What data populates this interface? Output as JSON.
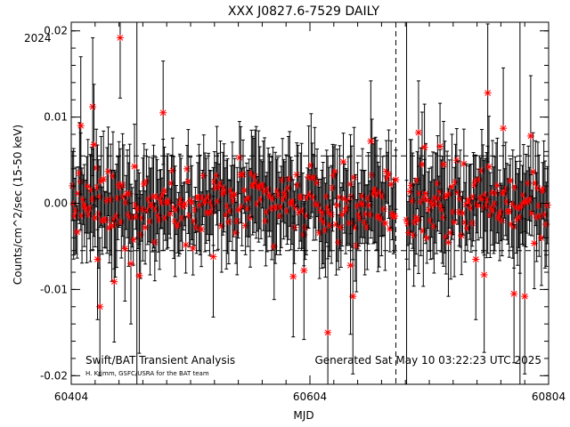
{
  "chart_data": {
    "type": "scatter",
    "title": "XXX J0827.6-7529 DAILY",
    "xlabel": "MJD",
    "ylabel": "Counts/cm^2/sec (15-50 keV)",
    "year_label": "2024",
    "xlim": [
      60404,
      60804
    ],
    "ylim": [
      -0.021,
      0.021
    ],
    "x_ticks": [
      60404,
      60604,
      60804
    ],
    "y_ticks": [
      -0.02,
      -0.01,
      0.0,
      0.01,
      0.02
    ],
    "y_tick_labels": [
      "-0.02",
      "-0.01",
      "0.00",
      "0.01",
      "0.02"
    ],
    "dashed_hlines": [
      0.0055,
      -0.0055
    ],
    "dashed_vline_mjd": 60676,
    "solid_vlines_mjd": [
      60459,
      60685,
      60780
    ],
    "gaps_mjd": [
      [
        60677,
        60684
      ]
    ],
    "marker_color": "#ff0000",
    "errorbar_color": "#000000",
    "series": [
      {
        "marker": "asterisk",
        "color": "#ff0000",
        "points": [
          [
            60445,
            0.0192,
            0.007
          ],
          [
            60481,
            0.0105,
            0.006
          ],
          [
            60695,
            0.0082,
            0.006
          ],
          [
            60700,
            0.0065,
            0.005
          ],
          [
            60713,
            0.0066,
            0.005
          ],
          [
            60716,
            0.0045,
            0.005
          ],
          [
            60422,
            0.0112,
            0.008
          ],
          [
            60412,
            0.009,
            0.008
          ],
          [
            60423,
            0.0068,
            0.007
          ],
          [
            60753,
            0.0128,
            0.008
          ],
          [
            60766,
            0.0087,
            0.007
          ],
          [
            60789,
            0.0078,
            0.007
          ],
          [
            60750,
            -0.0083,
            0.009
          ],
          [
            60775,
            -0.0105,
            0.008
          ],
          [
            60784,
            -0.0108,
            0.009
          ],
          [
            60440,
            -0.0091,
            0.007
          ],
          [
            60461,
            -0.0084,
            0.009
          ],
          [
            60428,
            -0.012,
            0.008
          ],
          [
            60619,
            -0.015,
            0.01
          ],
          [
            60640,
            -0.0108,
            0.009
          ],
          [
            60590,
            -0.0085,
            0.007
          ],
          [
            60638,
            -0.0072,
            0.008
          ],
          [
            60454,
            -0.007,
            0.007
          ],
          [
            60426,
            -0.0065,
            0.007
          ],
          [
            60523,
            -0.0062,
            0.007
          ],
          [
            60599,
            -0.0078,
            0.008
          ],
          [
            60743,
            -0.0065,
            0.007
          ],
          [
            60655,
            0.0072,
            0.007
          ]
        ]
      }
    ],
    "footer_left": "Swift/BAT Transient Analysis",
    "footer_credit": "H. Krimm, GSFC/USRA for the BAT team",
    "footer_right": "Generated Sat May 10 03:22:23 UTC 2025"
  }
}
